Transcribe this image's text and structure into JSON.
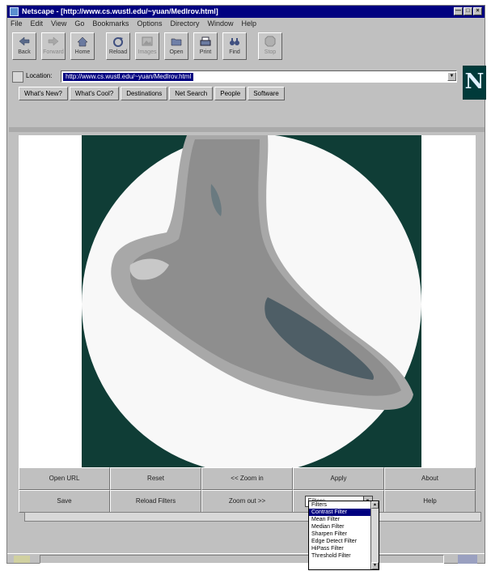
{
  "window": {
    "title": "Netscape - [http://www.cs.wustl.edu/~yuan/MedIrov.html]"
  },
  "menu": [
    "File",
    "Edit",
    "View",
    "Go",
    "Bookmarks",
    "Options",
    "Directory",
    "Window",
    "Help"
  ],
  "toolbar": {
    "back": "Back",
    "forward": "Forward",
    "home": "Home",
    "reload": "Reload",
    "images": "Images",
    "open": "Open",
    "print": "Print",
    "find": "Find",
    "stop": "Stop"
  },
  "location": {
    "label": "Location:",
    "value": "http://www.cs.wustl.edu/~yuan/MedIrov.html"
  },
  "directory_buttons": [
    "What's New?",
    "What's Cool?",
    "Destinations",
    "Net Search",
    "People",
    "Software"
  ],
  "applet": {
    "row1": [
      "Open URL",
      "Reset",
      "<< Zoom in",
      "Apply",
      "About"
    ],
    "row2": [
      "Save",
      "Reload Filters",
      "Zoom out >>",
      "",
      "Help"
    ],
    "filter_select": "Filters",
    "filter_options": [
      "Filters",
      "Contrast Filter",
      "Mean Filter",
      "Median Filter",
      "Sharpen Filter",
      "Edge Detect Filter",
      "HiPass Filter",
      "Threshold Filter"
    ],
    "filter_selected_index": 1
  },
  "logo": "N"
}
